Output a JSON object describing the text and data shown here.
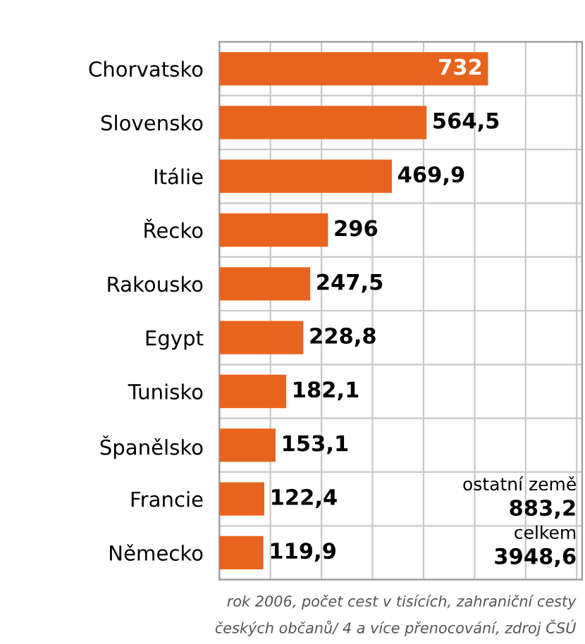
{
  "chart_data": {
    "type": "bar",
    "orientation": "horizontal",
    "categories": [
      "Chorvatsko",
      "Slovensko",
      "Itálie",
      "Řecko",
      "Rakousko",
      "Egypt",
      "Tunisko",
      "Španělsko",
      "Francie",
      "Německo"
    ],
    "values": [
      732,
      564.5,
      469.9,
      296,
      247.5,
      228.8,
      182.1,
      153.1,
      122.4,
      119.9
    ],
    "value_labels": [
      "732",
      "564,5",
      "469,9",
      "296",
      "247,5",
      "228,8",
      "182,1",
      "153,1",
      "122,4",
      "119,9"
    ],
    "color": "#e8641e",
    "grid": true,
    "annotations": [
      "ostatní země",
      "883,2",
      "celkem",
      "3948,6",
      "rok 2006, počet cest v tisících, zahraniční cesty",
      "českých občanů/ 4 a více přenocování, zdroj ČSÚ"
    ]
  }
}
